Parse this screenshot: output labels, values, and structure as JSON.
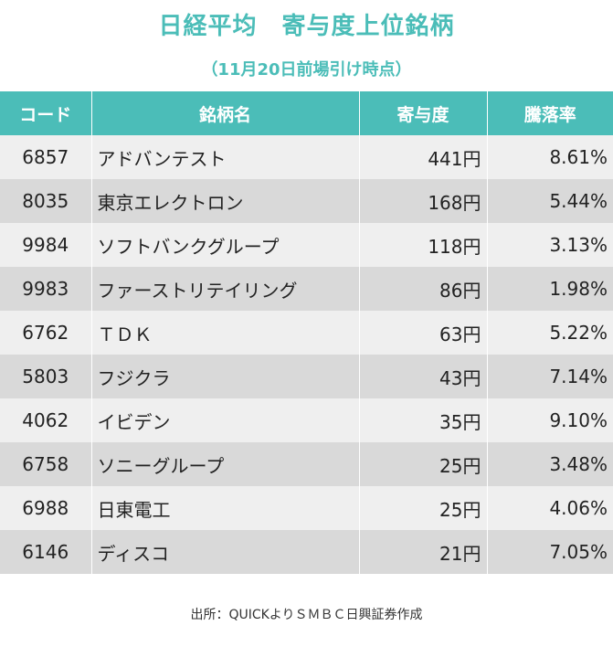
{
  "title": "日経平均　寄与度上位銘柄",
  "subtitle": "（11月20日前場引け時点）",
  "table": {
    "headers": [
      "コード",
      "銘柄名",
      "寄与度",
      "騰落率"
    ],
    "rows": [
      {
        "code": "6857",
        "name": "アドバンテスト",
        "contribution": "441円",
        "change": "8.61%"
      },
      {
        "code": "8035",
        "name": "東京エレクトロン",
        "contribution": "168円",
        "change": "5.44%"
      },
      {
        "code": "9984",
        "name": "ソフトバンクグループ",
        "contribution": "118円",
        "change": "3.13%"
      },
      {
        "code": "9983",
        "name": "ファーストリテイリング",
        "contribution": "86円",
        "change": "1.98%"
      },
      {
        "code": "6762",
        "name": "ＴＤＫ",
        "contribution": "63円",
        "change": "5.22%"
      },
      {
        "code": "5803",
        "name": "フジクラ",
        "contribution": "43円",
        "change": "7.14%"
      },
      {
        "code": "4062",
        "name": "イビデン",
        "contribution": "35円",
        "change": "9.10%"
      },
      {
        "code": "6758",
        "name": "ソニーグループ",
        "contribution": "25円",
        "change": "3.48%"
      },
      {
        "code": "6988",
        "name": "日東電工",
        "contribution": "25円",
        "change": "4.06%"
      },
      {
        "code": "6146",
        "name": "ディスコ",
        "contribution": "21円",
        "change": "7.05%"
      }
    ]
  },
  "source": "出所：QUICKよりＳＭＢＣ日興証券作成",
  "colors": {
    "accent": "#4bbdb8",
    "row_light": "#efefef",
    "row_dark": "#d9d9d9"
  }
}
